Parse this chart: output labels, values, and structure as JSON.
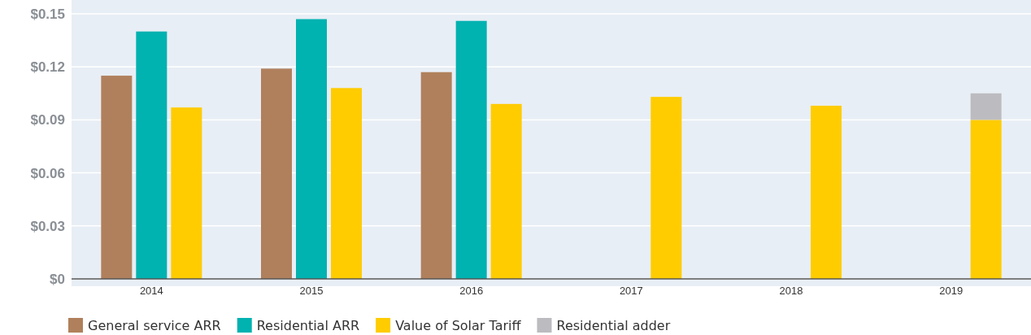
{
  "chart_data": {
    "type": "bar",
    "categories": [
      "2014",
      "2015",
      "2016",
      "2017",
      "2018",
      "2019"
    ],
    "series": [
      {
        "name": "General service ARR",
        "color": "#b0805c",
        "values": [
          0.115,
          0.119,
          0.117,
          null,
          null,
          null
        ]
      },
      {
        "name": "Residential ARR",
        "color": "#00b2b0",
        "values": [
          0.14,
          0.147,
          0.146,
          null,
          null,
          null
        ]
      },
      {
        "name": "Value of Solar Tariff",
        "color": "#ffcc00",
        "values": [
          0.097,
          0.108,
          0.099,
          0.103,
          0.098,
          0.09
        ]
      },
      {
        "name": "Residential adder",
        "color": "#bcbcc0",
        "values": [
          null,
          null,
          null,
          null,
          null,
          0.015
        ],
        "base": [
          null,
          null,
          null,
          null,
          null,
          0.09
        ]
      }
    ],
    "ylim": [
      0,
      0.15
    ],
    "yticks": [
      {
        "value": 0,
        "label": "$0"
      },
      {
        "value": 0.03,
        "label": "$0.03"
      },
      {
        "value": 0.06,
        "label": "$0.06"
      },
      {
        "value": 0.09,
        "label": "$0.09"
      },
      {
        "value": 0.12,
        "label": "$0.12"
      },
      {
        "value": 0.15,
        "label": "$0.15"
      }
    ],
    "grid": "y",
    "legend": "bottom left"
  }
}
